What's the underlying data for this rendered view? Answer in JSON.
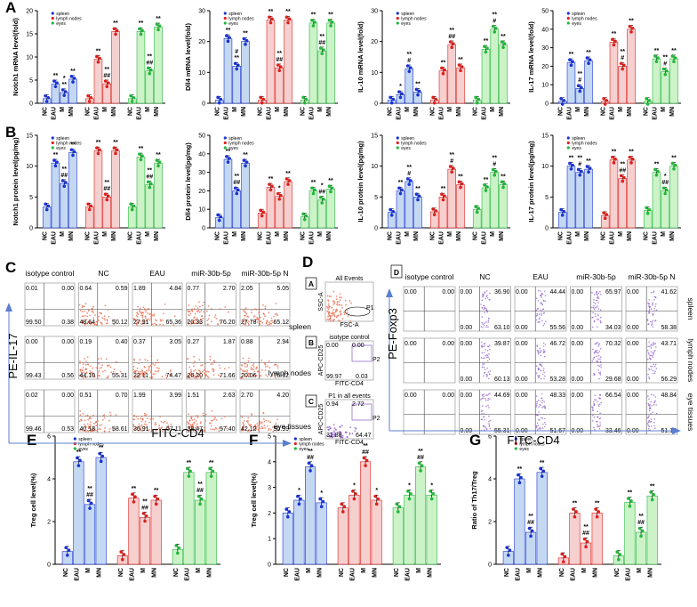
{
  "colors": {
    "spleen": "#1a33d6",
    "lymph": "#e0201c",
    "eyes": "#22b83a",
    "spleen_fill": "#c4d8f2",
    "lymph_fill": "#f6cfcf",
    "eyes_fill": "#ccf2c8",
    "facs_dot_orange": "#e86a4a",
    "facs_dot_purple": "#8a55c8",
    "arrow": "#5b7fd0",
    "gate": "#9a6fc8"
  },
  "legend": [
    "spleen",
    "lymph nodes",
    "eyes"
  ],
  "group_categories": [
    "NC",
    "EAU",
    "M",
    "MN"
  ],
  "panel_labels": {
    "A": "A",
    "B": "B",
    "C": "C",
    "D": "D",
    "E": "E",
    "F": "F",
    "G": "G"
  },
  "chart_data": [
    {
      "id": "A1",
      "type": "bar",
      "ylabel": "Notch1 mRNA level(fold)",
      "ylim": [
        0,
        20
      ],
      "yticks": [
        0,
        5,
        10,
        15,
        20
      ],
      "series": [
        {
          "name": "spleen",
          "values": [
            1,
            4.2,
            2.3,
            5.2
          ],
          "sig": [
            "",
            "**",
            "**",
            "**"
          ],
          "sig2": [
            "",
            "",
            "*",
            ""
          ]
        },
        {
          "name": "lymph nodes",
          "values": [
            1,
            9.5,
            4.2,
            15.5
          ],
          "sig": [
            "",
            "**",
            "##",
            "**"
          ],
          "sig2": [
            "",
            "",
            "**",
            ""
          ]
        },
        {
          "name": "eyes",
          "values": [
            1,
            15.5,
            7,
            16.5
          ],
          "sig": [
            "",
            "**",
            "##",
            "**"
          ],
          "sig2": [
            "",
            "",
            "**",
            ""
          ]
        }
      ]
    },
    {
      "id": "A2",
      "type": "bar",
      "ylabel": "Dll4 mRNA level(fold)",
      "ylim": [
        0,
        30
      ],
      "yticks": [
        0,
        10,
        20,
        30
      ],
      "series": [
        {
          "name": "spleen",
          "values": [
            1,
            21,
            12,
            20
          ],
          "sig": [
            "",
            "**",
            "**",
            "**"
          ],
          "sig2": [
            "",
            "",
            "#",
            ""
          ]
        },
        {
          "name": "lymph nodes",
          "values": [
            1,
            27,
            11.5,
            27
          ],
          "sig": [
            "",
            "**",
            "##",
            "**"
          ],
          "sig2": [
            "",
            "",
            "**",
            ""
          ]
        },
        {
          "name": "eyes",
          "values": [
            1,
            26,
            17,
            26
          ],
          "sig": [
            "",
            "**",
            "##",
            "**"
          ],
          "sig2": [
            "",
            "",
            "**",
            ""
          ]
        }
      ]
    },
    {
      "id": "A3",
      "type": "bar",
      "ylabel": "IL-10 mRNA level(fold)",
      "ylim": [
        0,
        30
      ],
      "yticks": [
        0,
        10,
        20,
        30
      ],
      "series": [
        {
          "name": "spleen",
          "values": [
            1,
            2.8,
            11.2,
            3.6
          ],
          "sig": [
            "",
            "*",
            "#",
            "**"
          ],
          "sig2": [
            "",
            "",
            "**",
            ""
          ]
        },
        {
          "name": "lymph nodes",
          "values": [
            1,
            10.5,
            19,
            11.5
          ],
          "sig": [
            "",
            "**",
            "##",
            "**"
          ],
          "sig2": [
            "",
            "",
            "**",
            ""
          ]
        },
        {
          "name": "eyes",
          "values": [
            1,
            17.5,
            24,
            19
          ],
          "sig": [
            "",
            "**",
            "#",
            "**"
          ],
          "sig2": [
            "",
            "",
            "**",
            ""
          ]
        }
      ]
    },
    {
      "id": "A4",
      "type": "bar",
      "ylabel": "IL-17 mRNA level(fold)",
      "ylim": [
        0,
        50
      ],
      "yticks": [
        0,
        10,
        20,
        30,
        40,
        50
      ],
      "series": [
        {
          "name": "spleen",
          "values": [
            1,
            22,
            8,
            23
          ],
          "sig": [
            "",
            "**",
            "#",
            "**"
          ],
          "sig2": [
            "",
            "",
            "**",
            ""
          ]
        },
        {
          "name": "lymph nodes",
          "values": [
            1,
            33,
            20,
            40
          ],
          "sig": [
            "",
            "**",
            "#",
            "**"
          ],
          "sig2": [
            "",
            "",
            "**",
            ""
          ]
        },
        {
          "name": "eyes",
          "values": [
            1,
            24,
            17,
            24
          ],
          "sig": [
            "",
            "**",
            "#",
            "**"
          ],
          "sig2": [
            "",
            "",
            "**",
            ""
          ]
        }
      ]
    },
    {
      "id": "B1",
      "type": "bar",
      "ylabel": "Notch1 protein level(pg/mg)",
      "ylim": [
        0,
        15
      ],
      "yticks": [
        0,
        5,
        10,
        15
      ],
      "series": [
        {
          "name": "spleen",
          "values": [
            3.4,
            10.5,
            7.2,
            12.2
          ],
          "sig": [
            "",
            "**",
            "##",
            "**"
          ],
          "sig2": [
            "",
            "",
            "**",
            ""
          ]
        },
        {
          "name": "lymph nodes",
          "values": [
            3.4,
            12.5,
            5,
            12.5
          ],
          "sig": [
            "",
            "**",
            "##",
            "**"
          ],
          "sig2": [
            "",
            "",
            "**",
            ""
          ]
        },
        {
          "name": "eyes",
          "values": [
            3.4,
            11.5,
            7,
            10.5
          ],
          "sig": [
            "",
            "**",
            "##",
            "**"
          ],
          "sig2": [
            "",
            "",
            "**",
            ""
          ]
        }
      ]
    },
    {
      "id": "B2",
      "type": "bar",
      "ylabel": "Dll4 protein level(pg/mg)",
      "ylim": [
        0,
        50
      ],
      "yticks": [
        0,
        10,
        20,
        30,
        40,
        50
      ],
      "series": [
        {
          "name": "spleen",
          "values": [
            5.5,
            37,
            20,
            35
          ],
          "sig": [
            "",
            "**",
            "##",
            "**"
          ],
          "sig2": [
            "",
            "",
            "**",
            ""
          ]
        },
        {
          "name": "lymph nodes",
          "values": [
            8,
            22,
            17,
            25
          ],
          "sig": [
            "",
            "**",
            "*",
            "**"
          ],
          "sig2": [
            "",
            "",
            "",
            ""
          ]
        },
        {
          "name": "eyes",
          "values": [
            6,
            20,
            15,
            21
          ],
          "sig": [
            "",
            "**",
            "##",
            "**"
          ],
          "sig2": [
            "",
            "",
            "*",
            ""
          ]
        }
      ]
    },
    {
      "id": "B3",
      "type": "bar",
      "ylabel": "IL-10 protein level(pg/mg)",
      "ylim": [
        0,
        15
      ],
      "yticks": [
        0,
        5,
        10,
        15
      ],
      "series": [
        {
          "name": "spleen",
          "values": [
            2.5,
            6,
            7.5,
            5
          ],
          "sig": [
            "",
            "**",
            "#",
            "**"
          ],
          "sig2": [
            "",
            "",
            "**",
            ""
          ]
        },
        {
          "name": "lymph nodes",
          "values": [
            2.6,
            5,
            9.5,
            7
          ],
          "sig": [
            "",
            "**",
            "#",
            "**"
          ],
          "sig2": [
            "",
            "",
            "**",
            ""
          ]
        },
        {
          "name": "eyes",
          "values": [
            3,
            6.5,
            9,
            7
          ],
          "sig": [
            "",
            "**",
            "#",
            "**"
          ],
          "sig2": [
            "",
            "",
            "**",
            ""
          ]
        }
      ]
    },
    {
      "id": "B4",
      "type": "bar",
      "ylabel": "IL-17 protein level(pg/mg)",
      "ylim": [
        0,
        15
      ],
      "yticks": [
        0,
        5,
        10,
        15
      ],
      "series": [
        {
          "name": "spleen",
          "values": [
            2.5,
            10,
            9,
            9.5
          ],
          "sig": [
            "",
            "**",
            "#",
            "**"
          ],
          "sig2": [
            "",
            "",
            "**",
            ""
          ]
        },
        {
          "name": "lymph nodes",
          "values": [
            2,
            11,
            8,
            11
          ],
          "sig": [
            "",
            "**",
            "##",
            "**"
          ],
          "sig2": [
            "",
            "",
            "**",
            ""
          ]
        },
        {
          "name": "eyes",
          "values": [
            2.8,
            9,
            6,
            10
          ],
          "sig": [
            "",
            "**",
            "##",
            "**"
          ],
          "sig2": [
            "",
            "",
            "*",
            ""
          ]
        }
      ]
    },
    {
      "id": "E",
      "type": "bar",
      "ylabel": "Treg cell level(%)",
      "ylim": [
        0,
        6
      ],
      "yticks": [
        0,
        2,
        4,
        6
      ],
      "series": [
        {
          "name": "spleen",
          "values": [
            0.6,
            4.8,
            2.8,
            5
          ],
          "sig": [
            "",
            "**",
            "##",
            "**"
          ],
          "sig2": [
            "",
            "",
            "**",
            ""
          ]
        },
        {
          "name": "lymph nodes",
          "values": [
            0.4,
            3.1,
            2.2,
            3
          ],
          "sig": [
            "",
            "**",
            "##",
            "**"
          ],
          "sig2": [
            "",
            "",
            "**",
            ""
          ]
        },
        {
          "name": "eyes",
          "values": [
            0.7,
            4.3,
            3,
            4.3
          ],
          "sig": [
            "",
            "**",
            "##",
            "**"
          ],
          "sig2": [
            "",
            "",
            "**",
            ""
          ]
        }
      ]
    },
    {
      "id": "F",
      "type": "bar",
      "ylabel": "Treg cell level(%)",
      "ylim": [
        0,
        5
      ],
      "yticks": [
        0,
        1,
        2,
        3,
        4,
        5
      ],
      "series": [
        {
          "name": "spleen",
          "values": [
            2,
            2.5,
            3.8,
            2.4
          ],
          "sig": [
            "",
            "*",
            "##",
            "*"
          ],
          "sig2": [
            "",
            "",
            "**",
            ""
          ]
        },
        {
          "name": "lymph nodes",
          "values": [
            2.2,
            2.7,
            4,
            2.5
          ],
          "sig": [
            "",
            "*",
            "##",
            "*"
          ],
          "sig2": [
            "",
            "",
            "**",
            ""
          ]
        },
        {
          "name": "eyes",
          "values": [
            2.2,
            2.7,
            3.8,
            2.7
          ],
          "sig": [
            "",
            "*",
            "##",
            "*"
          ],
          "sig2": [
            "",
            "",
            "**",
            ""
          ]
        }
      ]
    },
    {
      "id": "G",
      "type": "bar",
      "ylabel": "Ratio of Th17/Treg",
      "ylim": [
        0,
        6
      ],
      "yticks": [
        0,
        2,
        4,
        6
      ],
      "series": [
        {
          "name": "spleen",
          "values": [
            0.6,
            4,
            1.5,
            4.3
          ],
          "sig": [
            "",
            "**",
            "##",
            "**"
          ],
          "sig2": [
            "",
            "",
            "**",
            ""
          ]
        },
        {
          "name": "lymph nodes",
          "values": [
            0.3,
            2.4,
            1,
            2.4
          ],
          "sig": [
            "",
            "**",
            "##",
            "**"
          ],
          "sig2": [
            "",
            "",
            "**",
            ""
          ]
        },
        {
          "name": "eyes",
          "values": [
            0.4,
            2.9,
            1.5,
            3.2
          ],
          "sig": [
            "",
            "**",
            "##",
            "**"
          ],
          "sig2": [
            "",
            "",
            "**",
            ""
          ]
        }
      ]
    }
  ],
  "facs_C": {
    "col_titles": [
      "isotype control",
      "NC",
      "EAU",
      "miR-30b-5p",
      "miR-30b-5p N"
    ],
    "y_axis": "PE-IL-17",
    "x_axis": "FITC-CD4",
    "rows": [
      [
        [
          "0.01",
          "0.00",
          "99.50",
          "0.38"
        ],
        [
          "0.64",
          "0.59",
          "48.64",
          "50.12"
        ],
        [
          "1.89",
          "4.84",
          "27.91",
          "65.36"
        ],
        [
          "0.77",
          "2.70",
          "20.33",
          "76.20"
        ],
        [
          "2.05",
          "5.05",
          "27.78",
          "65.12"
        ]
      ],
      [
        [
          "0.00",
          "0.00",
          "99.43",
          "0.56"
        ],
        [
          "0.19",
          "0.40",
          "44.10",
          "55.31"
        ],
        [
          "0.37",
          "3.05",
          "22.11",
          "74.47"
        ],
        [
          "0.27",
          "1.87",
          "26.20",
          "71.66"
        ],
        [
          "0.88",
          "2.94",
          "20.06",
          "76.12"
        ]
      ],
      [
        [
          "0.02",
          "0.00",
          "99.46",
          "0.53"
        ],
        [
          "0.51",
          "0.70",
          "40.18",
          "58.61"
        ],
        [
          "1.99",
          "3.99",
          "36.91",
          "57.11"
        ],
        [
          "1.51",
          "2.63",
          "38.47",
          "57.40"
        ],
        [
          "2.70",
          "4.20",
          "42.12",
          "50.99"
        ]
      ]
    ]
  },
  "facs_D": {
    "row_labels": [
      "spleen",
      "lymph nodes",
      "eye tissues"
    ],
    "subpanels": [
      "A",
      "B",
      "C"
    ],
    "sub_titles": [
      "All Events",
      "isotype control",
      "P1 in all events"
    ],
    "sub_axes": [
      [
        "SSC-A",
        "FSC-A"
      ],
      [
        "APC-CD25",
        "FITC-CD4"
      ],
      [
        "APC-CD25",
        "FITC-CD4"
      ]
    ],
    "gate_labels": [
      "P1",
      "P2",
      "P2"
    ],
    "sub_values": [
      [
        "",
        "",
        "",
        ""
      ],
      [
        "0.00",
        "0.00",
        "99.97",
        "0.03"
      ],
      [
        "0.94",
        "2.72",
        "31.88",
        "64.47"
      ]
    ]
  },
  "facs_D2": {
    "label": "D",
    "col_titles": [
      "isotype control",
      "NC",
      "EAU",
      "miR-30b-5p",
      "miR-30b-5p N"
    ],
    "y_axis": "PE-Foxp3",
    "x_axis": "FITC-CD4",
    "row_labels": [
      "spleen",
      "lymph nodes",
      "eye tissues"
    ],
    "rows": [
      [
        [
          "0.00",
          "0.00"
        ],
        [
          "0.00",
          "36.90",
          "0.00",
          "63.10"
        ],
        [
          "0.00",
          "44.44",
          "0.00",
          "55.56"
        ],
        [
          "0.00",
          "65.97",
          "0.00",
          "34.03"
        ],
        [
          "0.00",
          "41.62",
          "0.00",
          "58.38"
        ]
      ],
      [
        [
          "0.00",
          "0.00"
        ],
        [
          "0.00",
          "39.87",
          "0.00",
          "60.13"
        ],
        [
          "0.00",
          "46.72",
          "0.00",
          "53.28"
        ],
        [
          "0.00",
          "70.32",
          "0.00",
          "29.68"
        ],
        [
          "0.00",
          "43.71",
          "0.00",
          "56.29"
        ]
      ],
      [
        [
          "0.00",
          "0.00"
        ],
        [
          "0.00",
          "44.69",
          "0.00",
          "55.31"
        ],
        [
          "0.00",
          "48.33",
          "0.00",
          "51.67"
        ],
        [
          "0.00",
          "66.54",
          "0.00",
          "33.46"
        ],
        [
          "0.00",
          "48.84",
          "0.00",
          "51.16"
        ]
      ]
    ]
  }
}
